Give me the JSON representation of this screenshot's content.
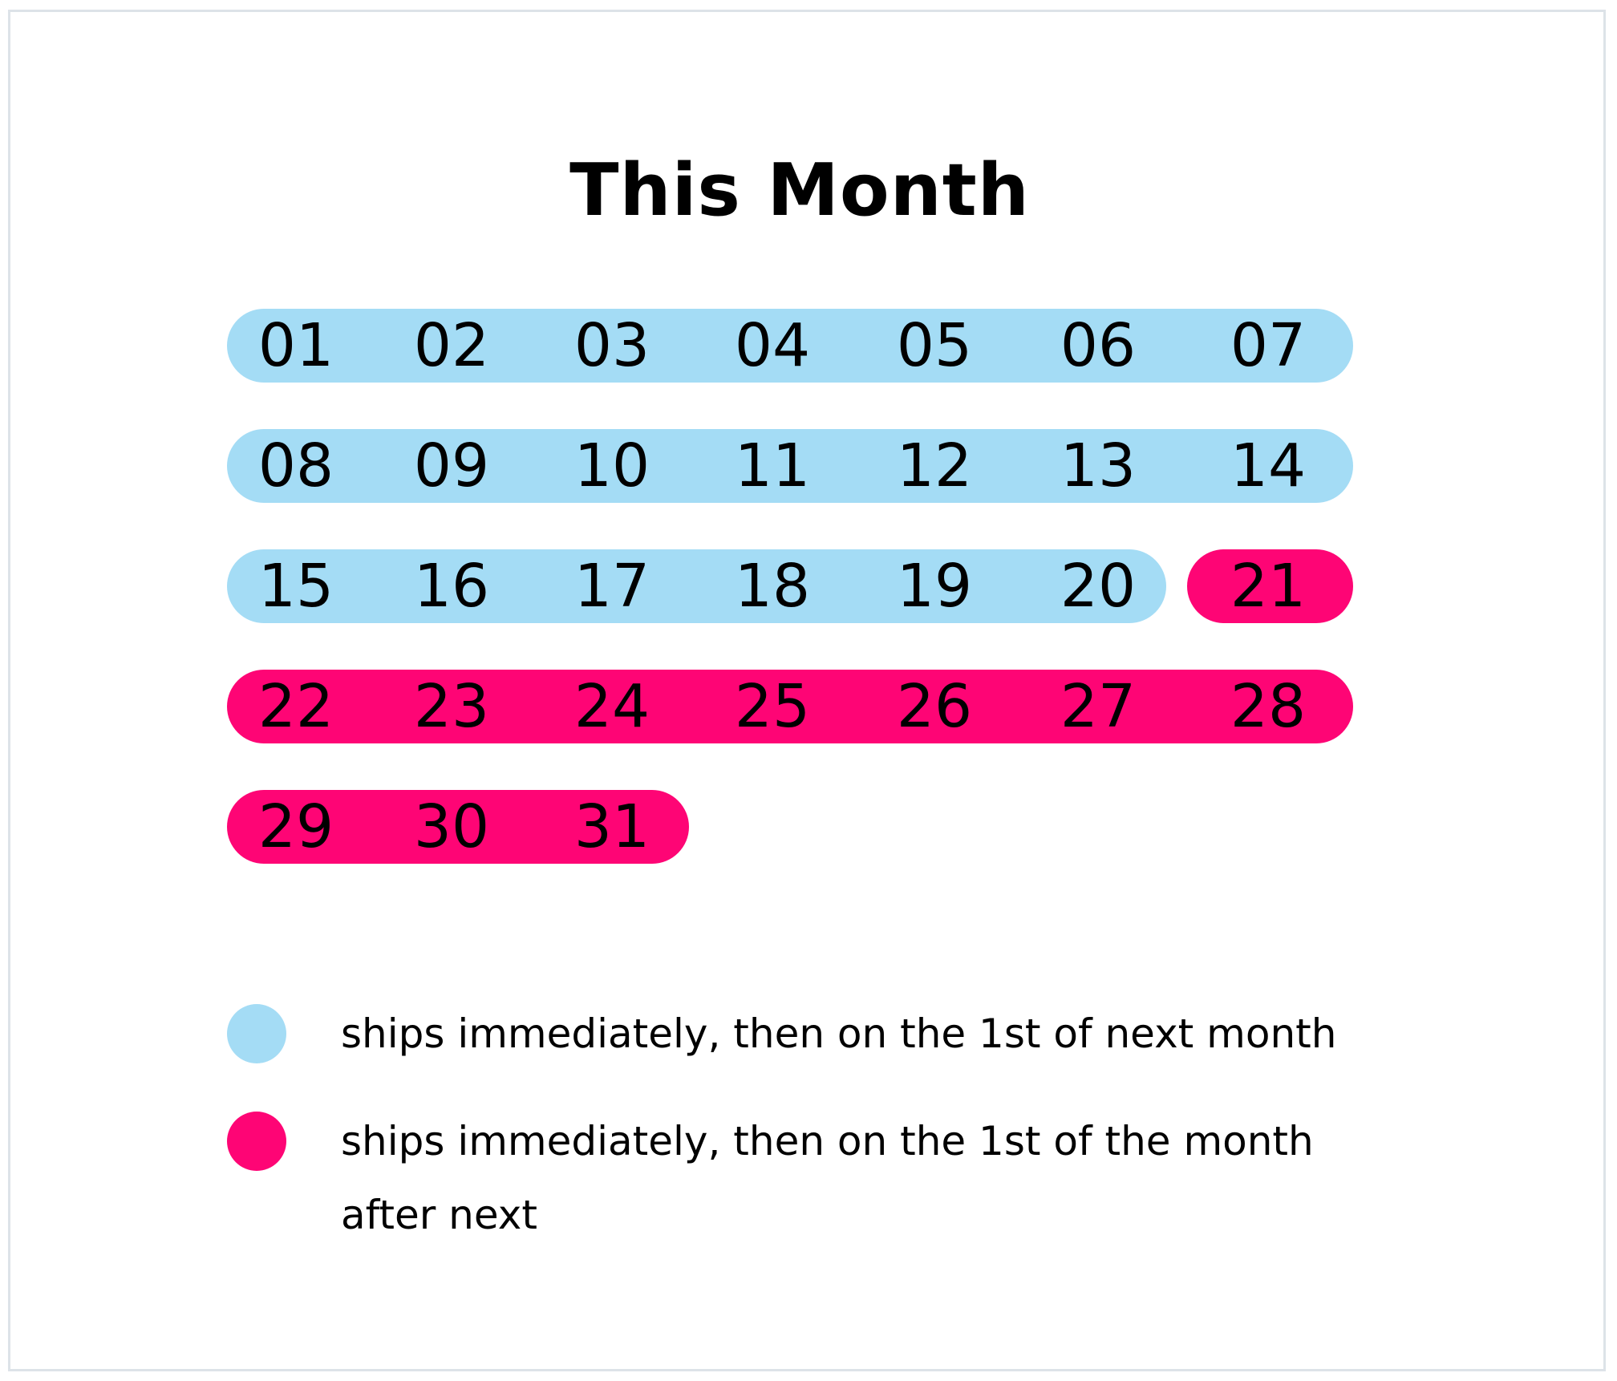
{
  "title": "This Month",
  "colors": {
    "next_month": "#a4dcf5",
    "month_after_next": "#fe0575",
    "frame_border": "#dde3e8"
  },
  "days": [
    "01",
    "02",
    "03",
    "04",
    "05",
    "06",
    "07",
    "08",
    "09",
    "10",
    "11",
    "12",
    "13",
    "14",
    "15",
    "16",
    "17",
    "18",
    "19",
    "20",
    "21",
    "22",
    "23",
    "24",
    "25",
    "26",
    "27",
    "28",
    "29",
    "30",
    "31"
  ],
  "groups": [
    {
      "category": "next_month",
      "days": [
        "01",
        "02",
        "03",
        "04",
        "05",
        "06",
        "07"
      ]
    },
    {
      "category": "next_month",
      "days": [
        "08",
        "09",
        "10",
        "11",
        "12",
        "13",
        "14"
      ]
    },
    {
      "category": "next_month",
      "days": [
        "15",
        "16",
        "17",
        "18",
        "19",
        "20"
      ]
    },
    {
      "category": "month_after_next",
      "days": [
        "21"
      ]
    },
    {
      "category": "month_after_next",
      "days": [
        "22",
        "23",
        "24",
        "25",
        "26",
        "27",
        "28"
      ]
    },
    {
      "category": "month_after_next",
      "days": [
        "29",
        "30",
        "31"
      ]
    }
  ],
  "legend": [
    {
      "category": "next_month",
      "label": "ships immediately, then on the 1st of next month"
    },
    {
      "category": "month_after_next",
      "label": "ships immediately, then on the 1st of the month after next"
    }
  ]
}
